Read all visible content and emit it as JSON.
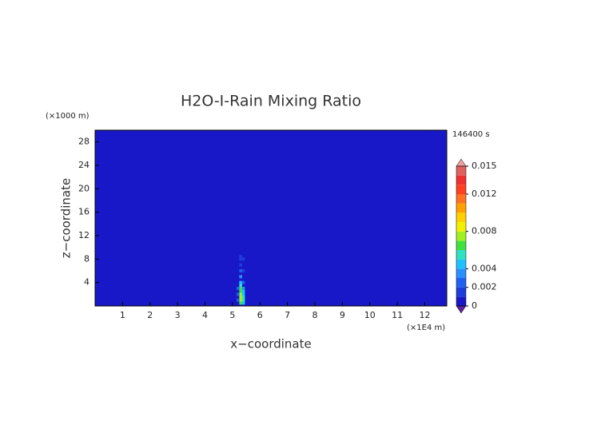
{
  "chart_data": {
    "type": "heatmap",
    "title": "H2O-I-Rain Mixing Ratio",
    "x_label": "x−coordinate",
    "y_label": "z−coordinate",
    "y_unit": "(×1000 m)",
    "x_unit": "(×1E4 m)",
    "time_label": "146400 s",
    "xlim": [
      0,
      12.8
    ],
    "ylim": [
      0,
      30
    ],
    "xticks": [
      1,
      2,
      3,
      4,
      5,
      6,
      7,
      8,
      9,
      10,
      11,
      12
    ],
    "yticks": [
      4,
      8,
      12,
      16,
      20,
      24,
      28
    ],
    "x": [
      5.3,
      5.3,
      5.3,
      5.3,
      5.3,
      5.3,
      5.3,
      5.3,
      5.3,
      5.3,
      5.3,
      5.3,
      5.3,
      5.3,
      5.4,
      5.4,
      5.4,
      5.4,
      5.4,
      5.4,
      5.4,
      5.4,
      5.4,
      5.2,
      5.2,
      5.2
    ],
    "y": [
      0.5,
      1.0,
      1.5,
      2.0,
      2.5,
      3.0,
      3.5,
      4.0,
      5.0,
      6.0,
      7.0,
      8.0,
      8.5,
      9.0,
      0.5,
      1.0,
      1.5,
      2.0,
      2.5,
      3.0,
      4.0,
      6.0,
      8.0,
      1.0,
      2.0,
      3.0
    ],
    "values": [
      0.006,
      0.007,
      0.0075,
      0.007,
      0.0065,
      0.006,
      0.005,
      0.004,
      0.003,
      0.002,
      0.0015,
      0.001,
      0.0012,
      0.0008,
      0.004,
      0.005,
      0.005,
      0.0045,
      0.004,
      0.003,
      0.0025,
      0.0015,
      0.001,
      0.002,
      0.0025,
      0.002
    ],
    "colorbar_lim": [
      0,
      0.015
    ],
    "colorbar_ticks": [
      0,
      0.002,
      0.004,
      0.008,
      0.012,
      0.015
    ],
    "colors": [
      "#1818c8",
      "#1e3cdc",
      "#2060f0",
      "#2890ff",
      "#20c0ff",
      "#30e0c0",
      "#40e040",
      "#a0f020",
      "#f0f000",
      "#ffd000",
      "#ffa000",
      "#ff7020",
      "#ff4020",
      "#f03030",
      "#e06060"
    ],
    "under_color": "#6020a0",
    "over_color": "#f0a0a0"
  }
}
